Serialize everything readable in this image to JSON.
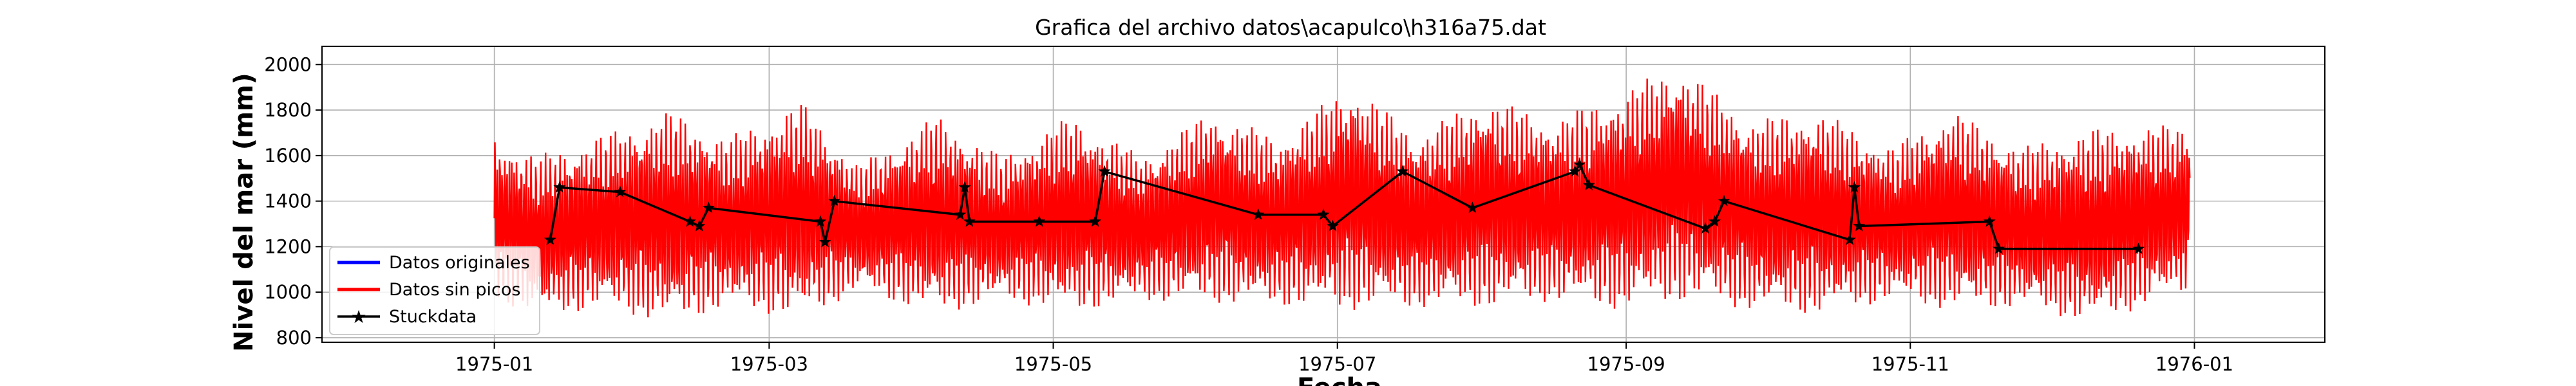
{
  "chart_data": {
    "type": "line",
    "title": "Grafica del archivo datos\\acapulco\\h316a75.dat",
    "xlabel": "Fecha",
    "ylabel": "Nivel del mar (mm)",
    "xlim": [
      "1974-11-25",
      "1976-01-29"
    ],
    "ylim": [
      780,
      2080
    ],
    "xticks": [
      "1975-01",
      "1975-03",
      "1975-05",
      "1975-07",
      "1975-09",
      "1975-11",
      "1976-01"
    ],
    "yticks": [
      800,
      1000,
      1200,
      1400,
      1600,
      1800,
      2000
    ],
    "grid": true,
    "legend_position": "lower-left",
    "colors": {
      "original": "#0000ff",
      "clean": "#ff0000",
      "stuck": "#000000"
    },
    "series": [
      {
        "name": "Datos originales",
        "color": "#0000ff",
        "note_hidden": true
      },
      {
        "name": "Datos sin picos",
        "color": "#ff0000",
        "x_range": [
          "1975-01-01",
          "1975-12-31"
        ],
        "oscillation_envelope": [
          {
            "date": "1975-01-01",
            "min": 960,
            "max": 1690
          },
          {
            "date": "1975-01-10",
            "min": 900,
            "max": 1600
          },
          {
            "date": "1975-01-25",
            "min": 920,
            "max": 1700
          },
          {
            "date": "1975-02-08",
            "min": 860,
            "max": 1800
          },
          {
            "date": "1975-02-20",
            "min": 930,
            "max": 1680
          },
          {
            "date": "1975-03-08",
            "min": 880,
            "max": 1840
          },
          {
            "date": "1975-03-20",
            "min": 1000,
            "max": 1560
          },
          {
            "date": "1975-04-06",
            "min": 900,
            "max": 1780
          },
          {
            "date": "1975-04-20",
            "min": 960,
            "max": 1600
          },
          {
            "date": "1975-05-05",
            "min": 910,
            "max": 1780
          },
          {
            "date": "1975-05-20",
            "min": 960,
            "max": 1600
          },
          {
            "date": "1975-06-04",
            "min": 950,
            "max": 1800
          },
          {
            "date": "1975-06-18",
            "min": 940,
            "max": 1680
          },
          {
            "date": "1975-07-04",
            "min": 920,
            "max": 1920
          },
          {
            "date": "1975-07-18",
            "min": 930,
            "max": 1700
          },
          {
            "date": "1975-08-02",
            "min": 930,
            "max": 1860
          },
          {
            "date": "1975-08-16",
            "min": 960,
            "max": 1760
          },
          {
            "date": "1975-08-31",
            "min": 920,
            "max": 1880
          },
          {
            "date": "1975-09-12",
            "min": 960,
            "max": 2010
          },
          {
            "date": "1975-09-28",
            "min": 920,
            "max": 1760
          },
          {
            "date": "1975-10-12",
            "min": 900,
            "max": 1800
          },
          {
            "date": "1975-10-28",
            "min": 960,
            "max": 1640
          },
          {
            "date": "1975-11-10",
            "min": 920,
            "max": 1800
          },
          {
            "date": "1975-11-25",
            "min": 930,
            "max": 1640
          },
          {
            "date": "1975-12-10",
            "min": 860,
            "max": 1720
          },
          {
            "date": "1975-12-31",
            "min": 1000,
            "max": 1740
          }
        ]
      },
      {
        "name": "Stuckdata",
        "color": "#000000",
        "points": [
          [
            "1975-01-13",
            1230
          ],
          [
            "1975-01-15",
            1460
          ],
          [
            "1975-01-28",
            1440
          ],
          [
            "1975-02-12",
            1310
          ],
          [
            "1975-02-14",
            1290
          ],
          [
            "1975-02-16",
            1370
          ],
          [
            "1975-03-12",
            1310
          ],
          [
            "1975-03-13",
            1220
          ],
          [
            "1975-03-15",
            1400
          ],
          [
            "1975-04-11",
            1340
          ],
          [
            "1975-04-12",
            1460
          ],
          [
            "1975-04-13",
            1310
          ],
          [
            "1975-04-28",
            1310
          ],
          [
            "1975-05-10",
            1310
          ],
          [
            "1975-05-12",
            1530
          ],
          [
            "1975-06-14",
            1340
          ],
          [
            "1975-06-28",
            1340
          ],
          [
            "1975-06-30",
            1290
          ],
          [
            "1975-07-15",
            1530
          ],
          [
            "1975-07-30",
            1370
          ],
          [
            "1975-08-21",
            1530
          ],
          [
            "1975-08-22",
            1560
          ],
          [
            "1975-08-24",
            1470
          ],
          [
            "1975-09-18",
            1280
          ],
          [
            "1975-09-20",
            1310
          ],
          [
            "1975-09-22",
            1400
          ],
          [
            "1975-10-19",
            1230
          ],
          [
            "1975-10-20",
            1460
          ],
          [
            "1975-10-21",
            1290
          ],
          [
            "1975-11-18",
            1310
          ],
          [
            "1975-11-20",
            1190
          ],
          [
            "1975-12-20",
            1190
          ]
        ]
      }
    ]
  }
}
